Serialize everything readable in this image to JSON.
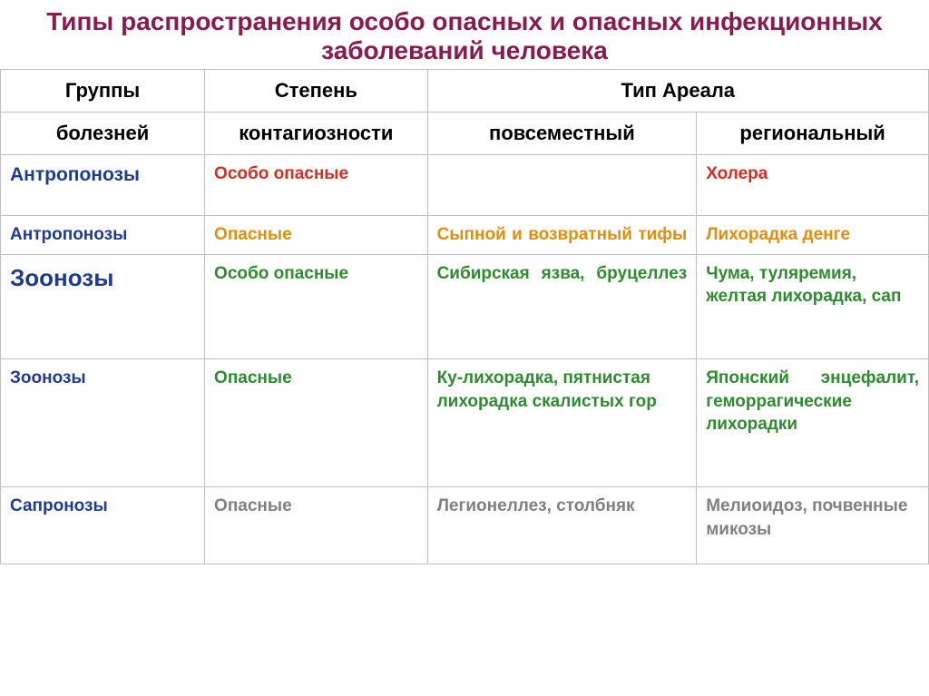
{
  "colors": {
    "title": "#8b1a4d",
    "header_text": "#000000",
    "blue": "#1f3a93",
    "red": "#d62d20",
    "orange": "#e08e0b",
    "green": "#2e8b2e",
    "gray": "#808080",
    "border": "#bfbfbf"
  },
  "title_fontsize": 28,
  "title": "Типы распространения особо опасных и опасных инфекционных заболеваний человека",
  "columns": {
    "c1_top": "Группы",
    "c1_bottom": "болезней",
    "c2_top": "Степень",
    "c2_bottom": "контагиозности",
    "c34_top": "Тип Ареала",
    "c3_bottom": "повсеместный",
    "c4_bottom": "региональный"
  },
  "column_widths_pct": [
    22,
    24,
    29,
    25
  ],
  "rows": [
    {
      "group": {
        "text": "Антропонозы",
        "color": "#1f3a93",
        "size": 21,
        "bold": true
      },
      "degree": {
        "text": "Особо опасные",
        "color": "#d62d20",
        "size": 19,
        "bold": true
      },
      "ubiq": {
        "text": "",
        "color": "#000000",
        "size": 19,
        "bold": false
      },
      "region": {
        "text": "Холера",
        "color": "#d62d20",
        "size": 19,
        "bold": true
      }
    },
    {
      "group": {
        "text": "Антропонозы",
        "color": "#1f3a93",
        "size": 19,
        "bold": true
      },
      "degree": {
        "text": "Опасные",
        "color": "#e08e0b",
        "size": 19,
        "bold": true
      },
      "ubiq": {
        "text": "Сыпной и возвратный тифы",
        "color": "#e08e0b",
        "size": 19,
        "bold": true,
        "justify": true
      },
      "region": {
        "text": "Лихорадка денге",
        "color": "#e08e0b",
        "size": 19,
        "bold": true
      }
    },
    {
      "group": {
        "text": "Зоонозы",
        "color": "#1f3a93",
        "size": 26,
        "bold": true
      },
      "degree": {
        "text": "Особо опасные",
        "color": "#2e8b2e",
        "size": 19,
        "bold": true
      },
      "ubiq": {
        "text": "Сибирская язва, бруцеллез",
        "color": "#2e8b2e",
        "size": 19,
        "bold": true,
        "justify": true
      },
      "region": {
        "text": "Чума, туляремия, желтая лихорадка, сап",
        "color": "#2e8b2e",
        "size": 19,
        "bold": true
      }
    },
    {
      "group": {
        "text": "Зоонозы",
        "color": "#1f3a93",
        "size": 19,
        "bold": true
      },
      "degree": {
        "text": "Опасные",
        "color": "#2e8b2e",
        "size": 19,
        "bold": true
      },
      "ubiq": {
        "text": "Ку-лихорадка, пятнистая лихорадка скалистых гор",
        "color": "#2e8b2e",
        "size": 19,
        "bold": true
      },
      "region": {
        "text": "Японский энцефалит, геморрагические лихорадки",
        "color": "#2e8b2e",
        "size": 19,
        "bold": true,
        "justify": true
      }
    },
    {
      "group": {
        "text": "Сапронозы",
        "color": "#1f3a93",
        "size": 19,
        "bold": true
      },
      "degree": {
        "text": "Опасные",
        "color": "#808080",
        "size": 19,
        "bold": true
      },
      "ubiq": {
        "text": "Легионеллез, столбняк",
        "color": "#808080",
        "size": 19,
        "bold": true
      },
      "region": {
        "text": "Мелиоидоз, почвенные микозы",
        "color": "#808080",
        "size": 19,
        "bold": true
      }
    }
  ]
}
